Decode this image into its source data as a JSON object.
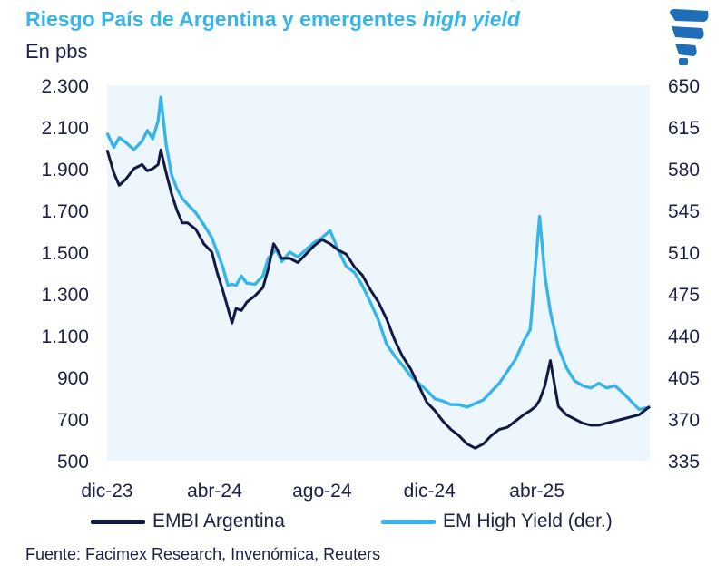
{
  "header": {
    "title_main": "Riesgo País de Argentina y emergentes ",
    "title_italic": "high yield",
    "unit": "En pbs"
  },
  "logo": {
    "icon": "facimex-logo-icon",
    "color": "#1e6fb8"
  },
  "legend": {
    "embi_label": "EMBI Argentina",
    "emhy_label": "EM High Yield (der.)"
  },
  "source": "Fuente: Facimex Research, Invenómica, Reuters",
  "colors": {
    "embi": "#111a45",
    "emhy": "#37b4ea",
    "plot_bg": "#eef6fd",
    "text": "#1c2148"
  },
  "chart_data": {
    "type": "line",
    "title": "Riesgo País de Argentina y emergentes high yield",
    "ylabel": "En pbs",
    "x_tick_labels": [
      "dic-23",
      "abr-24",
      "ago-24",
      "dic-24",
      "abr-25"
    ],
    "x_tick_months": [
      0,
      4,
      8,
      12,
      16
    ],
    "x_range_months": [
      0,
      20.2
    ],
    "y_left": {
      "range": [
        500,
        2300
      ],
      "ticks": [
        500,
        700,
        900,
        1100,
        1300,
        1500,
        1700,
        1900,
        2100,
        2300
      ],
      "tick_labels": [
        "500",
        "700",
        "900",
        "1.100",
        "1.300",
        "1.500",
        "1.700",
        "1.900",
        "2.100",
        "2.300"
      ]
    },
    "y_right": {
      "range": [
        335,
        650
      ],
      "ticks": [
        335,
        370,
        405,
        440,
        475,
        510,
        545,
        580,
        615,
        650
      ],
      "tick_labels": [
        "335",
        "370",
        "405",
        "440",
        "475",
        "510",
        "545",
        "580",
        "615",
        "650"
      ]
    },
    "series": [
      {
        "name": "EMBI Argentina",
        "axis": "left",
        "x": [
          0.0,
          0.25,
          0.45,
          0.7,
          1.0,
          1.3,
          1.5,
          1.7,
          1.9,
          2.0,
          2.2,
          2.4,
          2.6,
          2.8,
          3.0,
          3.3,
          3.6,
          3.9,
          4.1,
          4.3,
          4.5,
          4.65,
          4.8,
          5.0,
          5.2,
          5.5,
          5.8,
          6.0,
          6.2,
          6.3,
          6.5,
          6.8,
          7.1,
          7.4,
          7.7,
          8.0,
          8.3,
          8.6,
          8.9,
          9.2,
          9.5,
          9.8,
          10.1,
          10.4,
          10.7,
          11.0,
          11.3,
          11.6,
          11.9,
          12.2,
          12.5,
          12.8,
          13.1,
          13.4,
          13.7,
          14.0,
          14.3,
          14.6,
          14.9,
          15.2,
          15.5,
          15.75,
          15.95,
          16.1,
          16.3,
          16.5,
          16.8,
          17.1,
          17.4,
          17.7,
          18.0,
          18.3,
          18.6,
          18.9,
          19.2,
          19.5,
          19.8,
          20.2
        ],
        "values": [
          1990,
          1880,
          1820,
          1850,
          1900,
          1920,
          1890,
          1900,
          1920,
          1990,
          1880,
          1780,
          1700,
          1640,
          1640,
          1610,
          1540,
          1500,
          1400,
          1320,
          1230,
          1160,
          1230,
          1220,
          1260,
          1290,
          1330,
          1420,
          1540,
          1520,
          1470,
          1470,
          1450,
          1490,
          1530,
          1560,
          1540,
          1510,
          1490,
          1430,
          1390,
          1320,
          1260,
          1180,
          1080,
          1000,
          940,
          860,
          780,
          740,
          690,
          650,
          620,
          580,
          560,
          580,
          620,
          650,
          660,
          690,
          720,
          740,
          760,
          790,
          860,
          980,
          760,
          720,
          700,
          680,
          670,
          670,
          680,
          690,
          700,
          710,
          720,
          760
        ]
      },
      {
        "name": "EM High Yield (der.)",
        "axis": "right",
        "x": [
          0.0,
          0.25,
          0.45,
          0.7,
          1.0,
          1.3,
          1.5,
          1.7,
          1.9,
          2.0,
          2.2,
          2.4,
          2.6,
          2.8,
          3.0,
          3.3,
          3.6,
          3.9,
          4.1,
          4.3,
          4.5,
          4.65,
          4.8,
          5.0,
          5.2,
          5.5,
          5.8,
          6.0,
          6.2,
          6.3,
          6.5,
          6.8,
          7.1,
          7.4,
          7.7,
          8.0,
          8.3,
          8.6,
          8.9,
          9.2,
          9.5,
          9.8,
          10.1,
          10.4,
          10.7,
          11.0,
          11.3,
          11.6,
          11.9,
          12.2,
          12.5,
          12.8,
          13.1,
          13.4,
          13.7,
          14.0,
          14.3,
          14.6,
          14.9,
          15.2,
          15.5,
          15.75,
          15.95,
          16.1,
          16.3,
          16.5,
          16.8,
          17.1,
          17.4,
          17.7,
          18.0,
          18.3,
          18.6,
          18.9,
          19.2,
          19.5,
          19.8,
          20.2
        ],
        "values": [
          610,
          598,
          606,
          602,
          596,
          603,
          612,
          605,
          620,
          640,
          600,
          575,
          563,
          555,
          550,
          543,
          533,
          522,
          510,
          498,
          482,
          483,
          482,
          490,
          484,
          483,
          490,
          505,
          510,
          512,
          502,
          510,
          506,
          512,
          518,
          522,
          528,
          512,
          498,
          493,
          482,
          468,
          453,
          433,
          423,
          415,
          406,
          400,
          394,
          387,
          385,
          382,
          382,
          380,
          383,
          386,
          393,
          400,
          410,
          420,
          435,
          445,
          500,
          540,
          490,
          460,
          430,
          413,
          402,
          398,
          396,
          400,
          396,
          398,
          392,
          385,
          378,
          380
        ]
      }
    ]
  }
}
